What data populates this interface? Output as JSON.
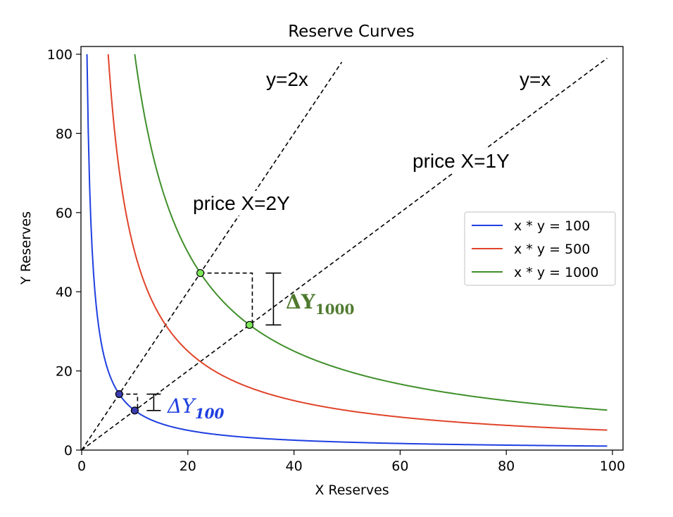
{
  "chart_data": {
    "type": "line",
    "title": "Reserve Curves",
    "xlabel": "X Reserves",
    "ylabel": "Y Reserves",
    "xlim": [
      0,
      100
    ],
    "ylim": [
      0,
      100
    ],
    "xticks": [
      0,
      20,
      40,
      60,
      80,
      100
    ],
    "yticks": [
      0,
      20,
      40,
      60,
      80,
      100
    ],
    "grid": false,
    "legend_position": "center-right",
    "series": [
      {
        "name": "x * y = 100",
        "k": 100,
        "color": "#1f3fe0",
        "x_range": [
          1,
          99
        ]
      },
      {
        "name": "x * y = 500",
        "k": 500,
        "color": "#e0442a",
        "x_range": [
          5,
          99
        ]
      },
      {
        "name": "x * y = 1000",
        "k": 1000,
        "color": "#3f8f2a",
        "x_range": [
          10,
          99
        ]
      }
    ],
    "lines": [
      {
        "label": "y=2x",
        "slope": 2,
        "x_end": 49
      },
      {
        "label": "y=x",
        "slope": 1,
        "x_end": 99
      }
    ],
    "annotations": [
      {
        "text": "y=2x"
      },
      {
        "text": "y=x"
      },
      {
        "text": "price X=2Y"
      },
      {
        "text": "price X=1Y"
      }
    ],
    "points": [
      {
        "x": 7.07,
        "y": 14.14,
        "color": "#3b3bb0"
      },
      {
        "x": 10,
        "y": 10,
        "color": "#3b3bb0"
      },
      {
        "x": 22.36,
        "y": 44.72,
        "color": "#7ee85a"
      },
      {
        "x": 31.62,
        "y": 31.62,
        "color": "#7ee85a"
      }
    ],
    "deltas": [
      {
        "symbol": "ΔY",
        "subscript": "100",
        "color": "#1f3fe0",
        "x_from": 7.07,
        "x_to": 10,
        "y_from": 14.14,
        "y_to": 10
      },
      {
        "symbol": "ΔY",
        "subscript": "1000",
        "color": "#4f7a2e",
        "x_from": 22.36,
        "x_to": 31.62,
        "y_from": 44.72,
        "y_to": 31.62
      }
    ]
  }
}
